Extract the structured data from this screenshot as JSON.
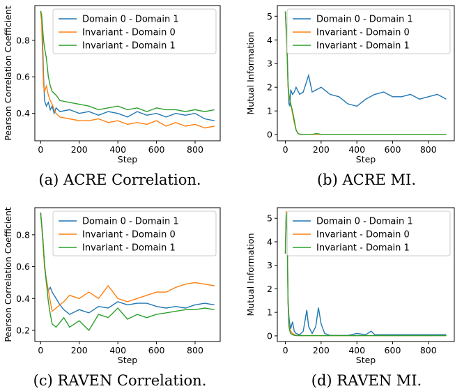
{
  "chart_data": [
    {
      "type": "line",
      "caption": "(a) ACRE Correlation.",
      "xlabel": "Step",
      "ylabel": "Pearson Correlation Coefficient",
      "xlim": [
        -30,
        930
      ],
      "ylim": [
        0.25,
        0.99
      ],
      "xticks": [
        0,
        200,
        400,
        600,
        800
      ],
      "yticks": [
        0.4,
        0.6,
        0.8
      ],
      "ytick_labels": [
        "0.4",
        "0.6",
        "0.8"
      ],
      "legend": [
        "Domain 0 - Domain 1",
        "Invariant - Domain 0",
        "Invariant - Domain 1"
      ],
      "series": [
        {
          "name": "Domain 0 - Domain 1",
          "color": "#1f77b4",
          "x": [
            0,
            5,
            10,
            15,
            20,
            30,
            40,
            50,
            60,
            70,
            80,
            100,
            150,
            200,
            250,
            300,
            350,
            400,
            450,
            500,
            550,
            600,
            650,
            700,
            750,
            800,
            850,
            900
          ],
          "y": [
            0.96,
            0.93,
            0.8,
            0.6,
            0.47,
            0.44,
            0.46,
            0.42,
            0.44,
            0.4,
            0.43,
            0.41,
            0.42,
            0.4,
            0.41,
            0.39,
            0.41,
            0.4,
            0.38,
            0.41,
            0.39,
            0.4,
            0.38,
            0.4,
            0.39,
            0.4,
            0.37,
            0.36
          ]
        },
        {
          "name": "Invariant - Domain 0",
          "color": "#ff7f0e",
          "x": [
            0,
            5,
            10,
            15,
            20,
            30,
            40,
            50,
            60,
            70,
            80,
            100,
            150,
            200,
            250,
            300,
            350,
            400,
            450,
            500,
            550,
            600,
            650,
            700,
            750,
            800,
            850,
            900
          ],
          "y": [
            0.96,
            0.9,
            0.72,
            0.55,
            0.52,
            0.55,
            0.5,
            0.47,
            0.45,
            0.42,
            0.4,
            0.38,
            0.37,
            0.36,
            0.36,
            0.37,
            0.35,
            0.36,
            0.34,
            0.35,
            0.34,
            0.36,
            0.33,
            0.35,
            0.33,
            0.34,
            0.32,
            0.33
          ]
        },
        {
          "name": "Invariant - Domain 1",
          "color": "#2ca02c",
          "x": [
            0,
            5,
            10,
            15,
            20,
            30,
            40,
            50,
            60,
            70,
            80,
            100,
            150,
            200,
            250,
            300,
            350,
            400,
            450,
            500,
            550,
            600,
            650,
            700,
            750,
            800,
            850,
            900
          ],
          "y": [
            0.96,
            0.94,
            0.87,
            0.8,
            0.76,
            0.7,
            0.6,
            0.55,
            0.52,
            0.51,
            0.5,
            0.47,
            0.46,
            0.45,
            0.44,
            0.42,
            0.43,
            0.44,
            0.42,
            0.43,
            0.41,
            0.43,
            0.42,
            0.42,
            0.41,
            0.42,
            0.41,
            0.42
          ]
        }
      ]
    },
    {
      "type": "line",
      "caption": "(b) ACRE MI.",
      "xlabel": "Step",
      "ylabel": "Mutual Information",
      "xlim": [
        -45,
        945
      ],
      "ylim": [
        -0.26,
        5.45
      ],
      "xticks": [
        0,
        200,
        400,
        600,
        800
      ],
      "yticks": [
        0,
        1,
        2,
        3,
        4,
        5
      ],
      "ytick_labels": [
        "0",
        "1",
        "2",
        "3",
        "4",
        "5"
      ],
      "legend": [
        "Domain 0 - Domain 1",
        "Invariant - Domain 0",
        "Invariant - Domain 1"
      ],
      "series": [
        {
          "name": "Domain 0 - Domain 1",
          "color": "#1f77b4",
          "x": [
            0,
            5,
            10,
            15,
            20,
            25,
            30,
            40,
            50,
            60,
            80,
            100,
            130,
            150,
            175,
            200,
            250,
            300,
            350,
            400,
            450,
            500,
            550,
            600,
            650,
            700,
            750,
            800,
            850,
            900
          ],
          "y": [
            5.2,
            4.5,
            3.5,
            2.2,
            1.3,
            1.2,
            1.9,
            1.7,
            1.8,
            2.0,
            1.7,
            1.8,
            2.5,
            1.8,
            1.9,
            2.0,
            1.7,
            1.6,
            1.3,
            1.2,
            1.5,
            1.7,
            1.8,
            1.6,
            1.6,
            1.7,
            1.5,
            1.6,
            1.7,
            1.5
          ]
        },
        {
          "name": "Invariant - Domain 0",
          "color": "#ff7f0e",
          "x": [
            0,
            5,
            10,
            15,
            20,
            30,
            40,
            50,
            60,
            70,
            80,
            100,
            150,
            200,
            300,
            400,
            500,
            600,
            700,
            800,
            900
          ],
          "y": [
            5.2,
            4.3,
            3.3,
            2.0,
            1.6,
            1.3,
            0.9,
            0.5,
            0.2,
            0.05,
            0.02,
            0.01,
            0.01,
            0.01,
            0.01,
            0.01,
            0.01,
            0.01,
            0.01,
            0.01,
            0.01
          ]
        },
        {
          "name": "Invariant - Domain 1",
          "color": "#2ca02c",
          "x": [
            0,
            5,
            10,
            15,
            20,
            30,
            40,
            50,
            60,
            70,
            80,
            100,
            150,
            175,
            200,
            300,
            400,
            500,
            600,
            700,
            800,
            900
          ],
          "y": [
            5.2,
            4.4,
            3.4,
            2.1,
            1.7,
            1.3,
            1.0,
            0.6,
            0.2,
            0.05,
            0.02,
            0.01,
            0.01,
            0.05,
            0.01,
            0.01,
            0.01,
            0.01,
            0.01,
            0.01,
            0.01,
            0.01
          ]
        }
      ]
    },
    {
      "type": "line",
      "caption": "(c) RAVEN Correlation.",
      "xlabel": "Step",
      "ylabel": "Pearson Correlation Coefficient",
      "xlim": [
        -30,
        930
      ],
      "ylim": [
        0.13,
        0.97
      ],
      "xticks": [
        0,
        200,
        400,
        600,
        800
      ],
      "yticks": [
        0.2,
        0.4,
        0.6,
        0.8
      ],
      "ytick_labels": [
        "0.2",
        "0.4",
        "0.6",
        "0.8"
      ],
      "legend": [
        "Domain 0 - Domain 1",
        "Invariant - Domain 0",
        "Invariant - Domain 1"
      ],
      "series": [
        {
          "name": "Domain 0 - Domain 1",
          "color": "#1f77b4",
          "x": [
            0,
            10,
            20,
            30,
            40,
            50,
            60,
            80,
            100,
            120,
            150,
            200,
            250,
            300,
            350,
            400,
            450,
            500,
            550,
            600,
            650,
            700,
            750,
            800,
            850,
            900
          ],
          "y": [
            0.94,
            0.8,
            0.6,
            0.5,
            0.45,
            0.47,
            0.44,
            0.4,
            0.36,
            0.33,
            0.3,
            0.33,
            0.31,
            0.35,
            0.34,
            0.38,
            0.36,
            0.37,
            0.37,
            0.35,
            0.34,
            0.35,
            0.34,
            0.36,
            0.37,
            0.36
          ]
        },
        {
          "name": "Invariant - Domain 0",
          "color": "#ff7f0e",
          "x": [
            0,
            10,
            20,
            30,
            40,
            50,
            60,
            80,
            100,
            120,
            150,
            200,
            250,
            300,
            350,
            400,
            450,
            500,
            550,
            600,
            650,
            700,
            750,
            800,
            850,
            900
          ],
          "y": [
            0.94,
            0.78,
            0.6,
            0.52,
            0.45,
            0.38,
            0.32,
            0.34,
            0.36,
            0.38,
            0.42,
            0.4,
            0.44,
            0.4,
            0.48,
            0.4,
            0.38,
            0.4,
            0.42,
            0.44,
            0.44,
            0.47,
            0.49,
            0.5,
            0.49,
            0.48
          ]
        },
        {
          "name": "Invariant - Domain 1",
          "color": "#2ca02c",
          "x": [
            0,
            10,
            20,
            30,
            40,
            50,
            60,
            80,
            100,
            120,
            150,
            200,
            250,
            300,
            350,
            400,
            450,
            500,
            550,
            600,
            650,
            700,
            750,
            800,
            850,
            900
          ],
          "y": [
            0.94,
            0.8,
            0.62,
            0.5,
            0.38,
            0.3,
            0.24,
            0.22,
            0.25,
            0.28,
            0.22,
            0.26,
            0.2,
            0.3,
            0.28,
            0.34,
            0.27,
            0.3,
            0.28,
            0.3,
            0.31,
            0.32,
            0.33,
            0.33,
            0.34,
            0.33
          ]
        }
      ]
    },
    {
      "type": "line",
      "caption": "(d) RAVEN MI.",
      "xlabel": "Step",
      "ylabel": "Mutual Information",
      "xlim": [
        -45,
        945
      ],
      "ylim": [
        -0.24,
        5.45
      ],
      "xticks": [
        0,
        200,
        400,
        600,
        800
      ],
      "yticks": [
        0,
        1,
        2,
        3,
        4,
        5
      ],
      "ytick_labels": [
        "0",
        "1",
        "2",
        "3",
        "4",
        "5"
      ],
      "legend": [
        "Domain 0 - Domain 1",
        "Invariant - Domain 0",
        "Invariant - Domain 1"
      ],
      "series": [
        {
          "name": "Domain 0 - Domain 1",
          "color": "#1f77b4",
          "x": [
            0,
            5,
            10,
            15,
            20,
            25,
            30,
            40,
            50,
            60,
            80,
            100,
            120,
            130,
            150,
            170,
            185,
            200,
            220,
            250,
            300,
            350,
            400,
            450,
            480,
            500,
            600,
            700,
            800,
            900
          ],
          "y": [
            3.5,
            5.3,
            4.6,
            1.5,
            0.8,
            0.5,
            0.3,
            0.6,
            0.2,
            0.1,
            0.05,
            0.2,
            1.1,
            0.4,
            0.1,
            0.4,
            1.2,
            0.5,
            0.1,
            0.02,
            0.02,
            0.02,
            0.1,
            0.05,
            0.2,
            0.05,
            0.05,
            0.05,
            0.05,
            0.05
          ]
        },
        {
          "name": "Invariant - Domain 0",
          "color": "#ff7f0e",
          "x": [
            0,
            5,
            10,
            15,
            20,
            25,
            30,
            40,
            50,
            60,
            80,
            100,
            150,
            200,
            300,
            400,
            500,
            600,
            700,
            800,
            900
          ],
          "y": [
            3.5,
            5.3,
            4.5,
            1.5,
            0.5,
            0.3,
            0.2,
            0.1,
            0.05,
            0.02,
            0.01,
            0.01,
            0.01,
            0.01,
            0.01,
            0.01,
            0.01,
            0.01,
            0.01,
            0.01,
            0.01
          ]
        },
        {
          "name": "Invariant - Domain 1",
          "color": "#2ca02c",
          "x": [
            0,
            5,
            10,
            15,
            20,
            25,
            30,
            40,
            50,
            60,
            80,
            100,
            150,
            200,
            300,
            400,
            500,
            600,
            700,
            800,
            900
          ],
          "y": [
            3.5,
            5.2,
            4.4,
            1.4,
            0.4,
            0.2,
            0.1,
            0.05,
            0.02,
            0.01,
            0.01,
            0.01,
            0.01,
            0.01,
            0.01,
            0.01,
            0.01,
            0.01,
            0.01,
            0.01,
            0.01
          ]
        }
      ]
    }
  ]
}
